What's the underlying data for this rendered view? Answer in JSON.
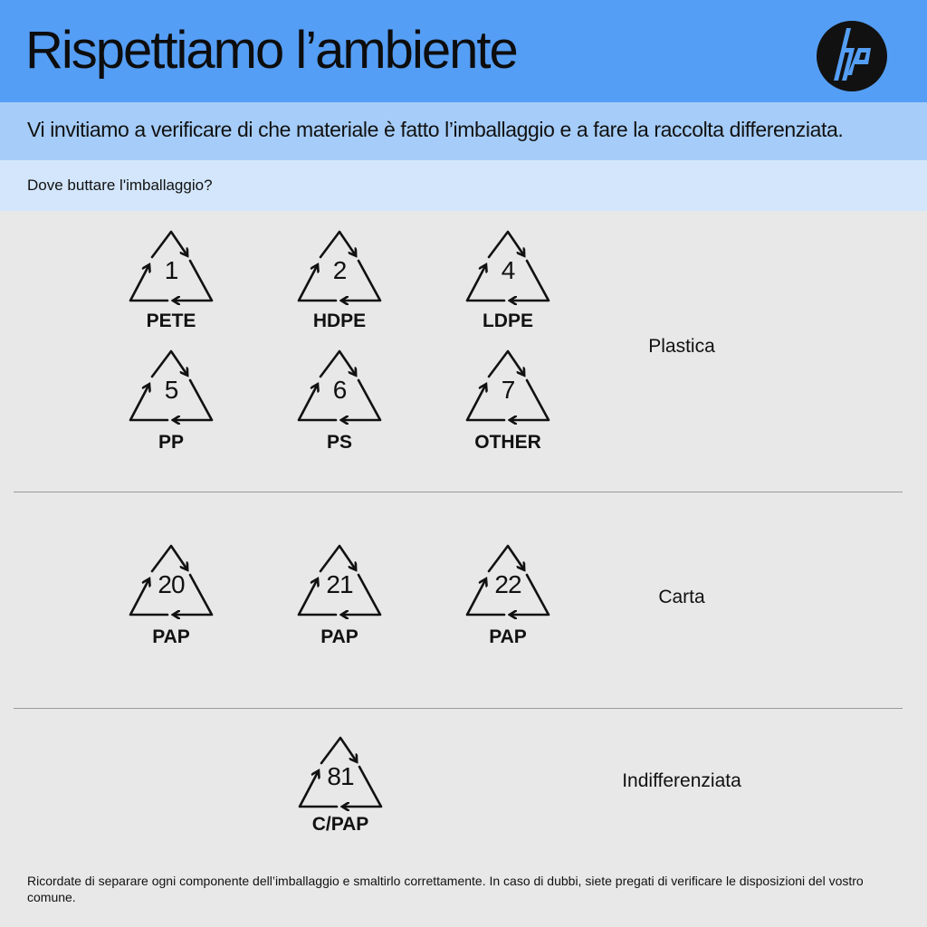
{
  "header": {
    "title": "Rispettiamo l’ambiente",
    "logo": "hp",
    "accent": "#559ef5"
  },
  "subtitle": "Vi invitiamo a verificare di che materiale è fatto l’imballaggio e a fare la raccolta differenziata.",
  "question": "Dove buttare l'imballaggio?",
  "groups": [
    {
      "category": "Plastica",
      "items": [
        {
          "code": "1",
          "label": "PETE"
        },
        {
          "code": "2",
          "label": "HDPE"
        },
        {
          "code": "4",
          "label": "LDPE"
        },
        {
          "code": "5",
          "label": "PP"
        },
        {
          "code": "6",
          "label": "PS"
        },
        {
          "code": "7",
          "label": "OTHER"
        }
      ]
    },
    {
      "category": "Carta",
      "items": [
        {
          "code": "20",
          "label": "PAP"
        },
        {
          "code": "21",
          "label": "PAP"
        },
        {
          "code": "22",
          "label": "PAP"
        }
      ]
    },
    {
      "category": "Indifferenziata",
      "items": [
        {
          "code": "81",
          "label": "C/PAP"
        }
      ]
    }
  ],
  "footer": "Ricordate di separare ogni componente dell’imballaggio e smaltirlo correttamente. In caso di dubbi, siete pregati di verificare le disposizioni del vostro comune.",
  "icons": {
    "recycle": "recycle-triangle-icon"
  }
}
